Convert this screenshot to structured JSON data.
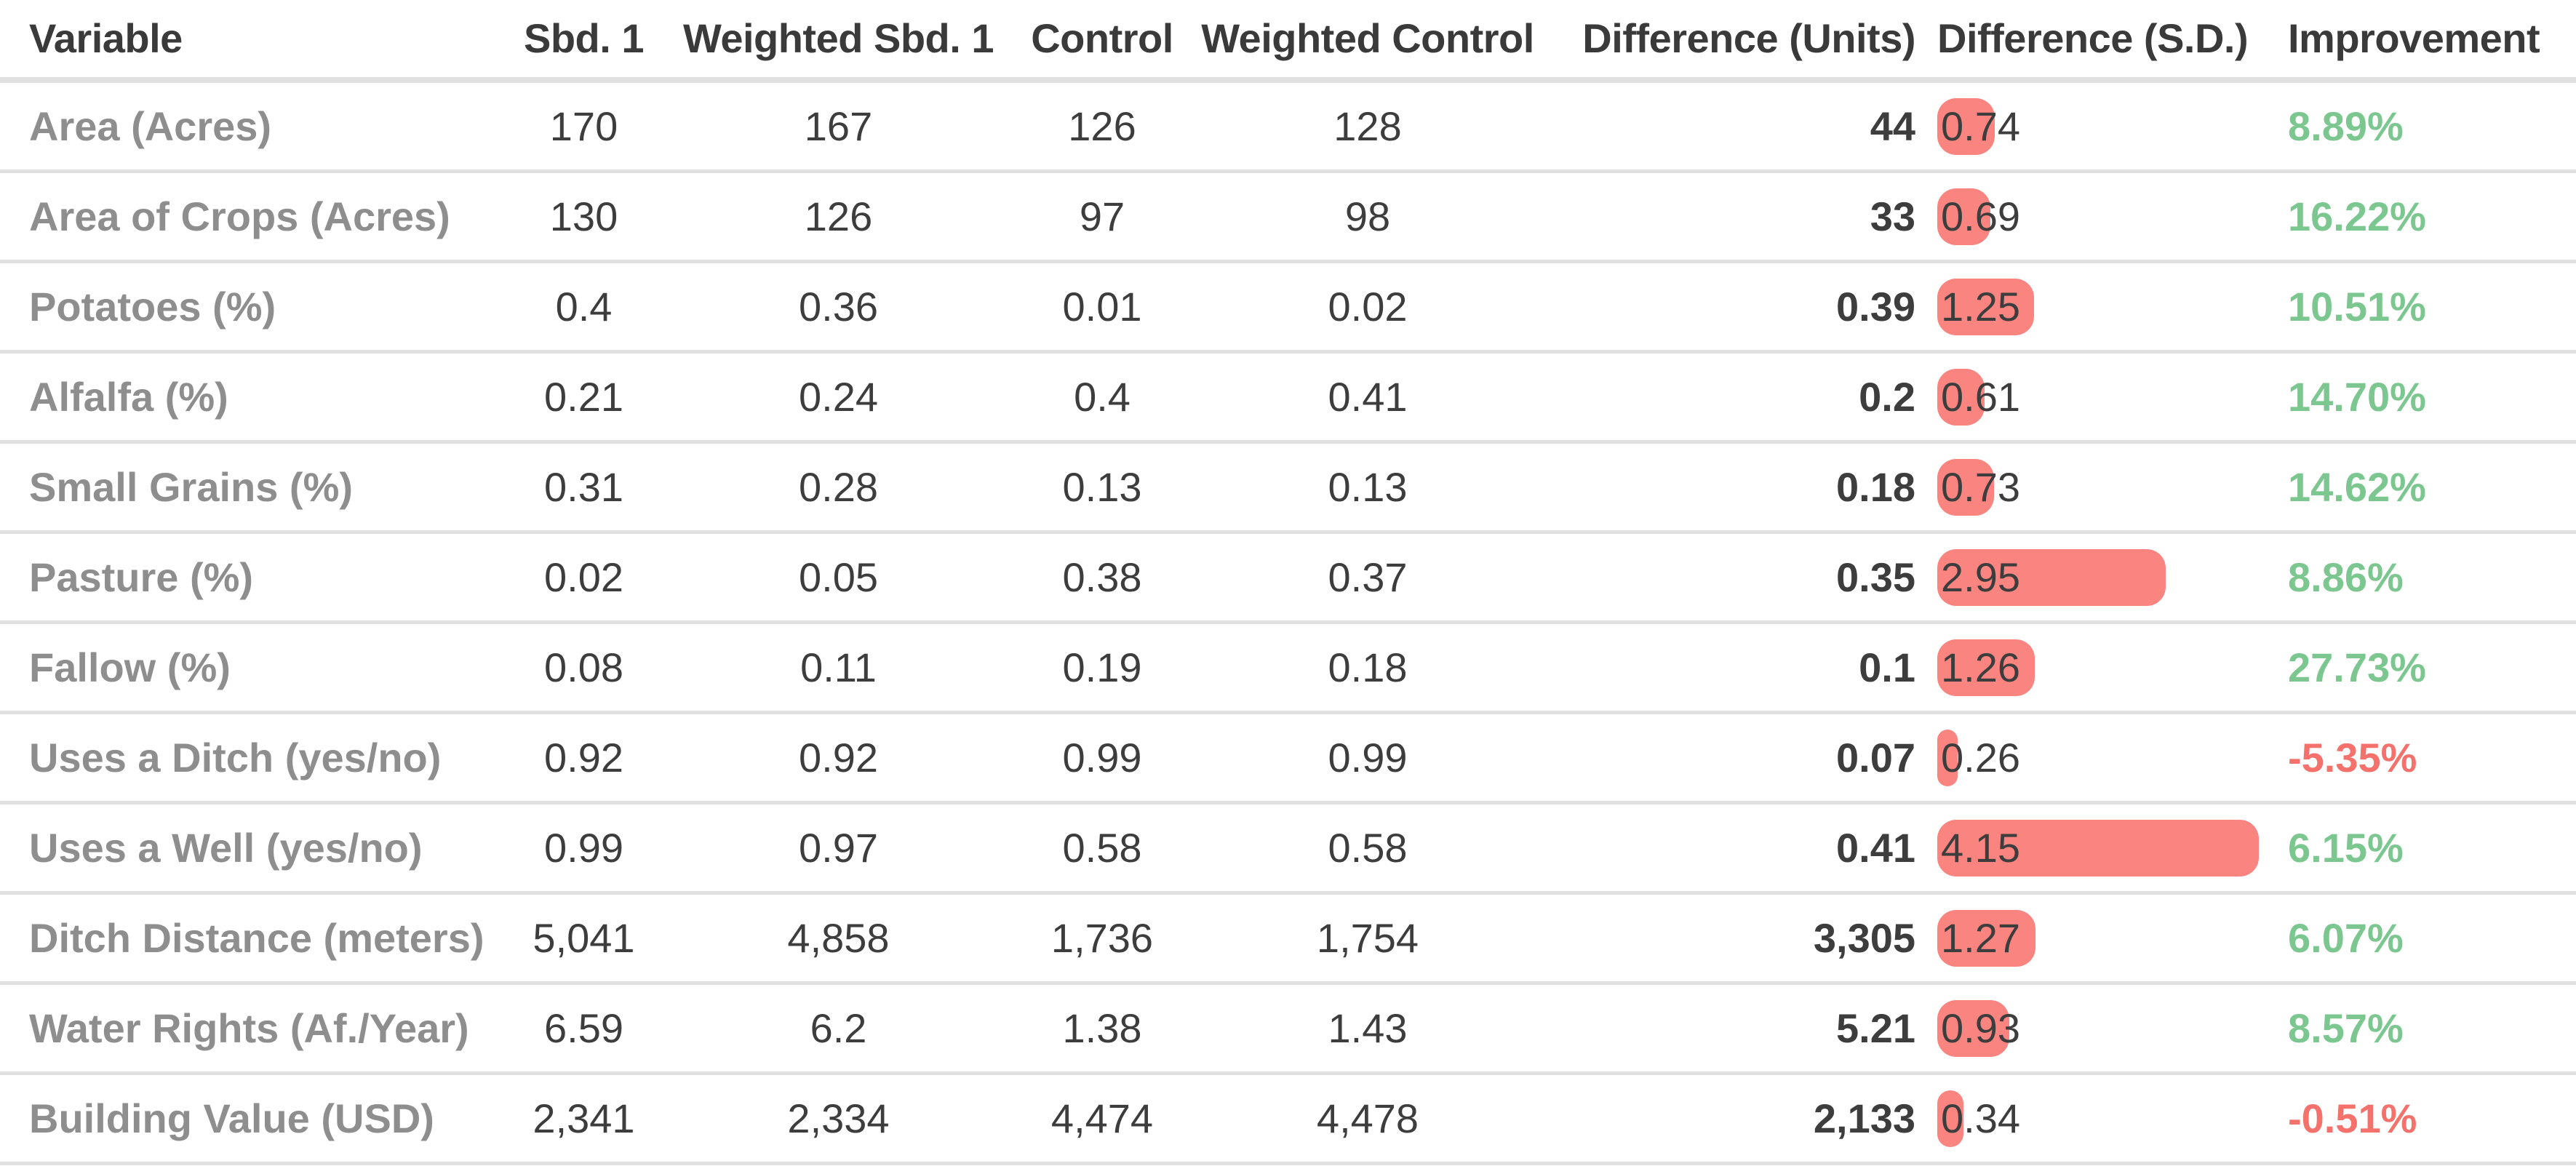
{
  "colors": {
    "bar": "#f98480",
    "positive_improvement": "#7cc790",
    "negative_improvement": "#f4716c",
    "row_label": "#8e8e8e",
    "value_text": "#3d3d3d",
    "header_text": "#3a3a3a",
    "divider": "#e0e0e0"
  },
  "chart_data": {
    "type": "table",
    "columns": [
      {
        "label": "Variable",
        "align": "left"
      },
      {
        "label": "Sbd. 1",
        "align": "center"
      },
      {
        "label": "Weighted Sbd. 1",
        "align": "center"
      },
      {
        "label": "Control",
        "align": "center"
      },
      {
        "label": "Weighted Control",
        "align": "center"
      },
      {
        "label": "Difference (Units)",
        "align": "right"
      },
      {
        "label": "Difference (S.D.)",
        "align": "left"
      },
      {
        "label": "Improvement",
        "align": "left"
      }
    ],
    "sd_bar": {
      "column": "Difference (S.D.)",
      "style": "proportional-width",
      "min": 0,
      "max_value": 4.15,
      "color": "#f98480"
    },
    "rows": [
      {
        "variable": "Area (Acres)",
        "sbd1": "170",
        "wsbd1": "167",
        "control": "126",
        "wcontrol": "128",
        "diff_units": "44",
        "diff_sd": "0.74",
        "diff_sd_value": 0.74,
        "improvement": "8.89%"
      },
      {
        "variable": "Area of Crops (Acres)",
        "sbd1": "130",
        "wsbd1": "126",
        "control": "97",
        "wcontrol": "98",
        "diff_units": "33",
        "diff_sd": "0.69",
        "diff_sd_value": 0.69,
        "improvement": "16.22%"
      },
      {
        "variable": "Potatoes (%)",
        "sbd1": "0.4",
        "wsbd1": "0.36",
        "control": "0.01",
        "wcontrol": "0.02",
        "diff_units": "0.39",
        "diff_sd": "1.25",
        "diff_sd_value": 1.25,
        "improvement": "10.51%"
      },
      {
        "variable": "Alfalfa (%)",
        "sbd1": "0.21",
        "wsbd1": "0.24",
        "control": "0.4",
        "wcontrol": "0.41",
        "diff_units": "0.2",
        "diff_sd": "0.61",
        "diff_sd_value": 0.61,
        "improvement": "14.70%"
      },
      {
        "variable": "Small Grains (%)",
        "sbd1": "0.31",
        "wsbd1": "0.28",
        "control": "0.13",
        "wcontrol": "0.13",
        "diff_units": "0.18",
        "diff_sd": "0.73",
        "diff_sd_value": 0.73,
        "improvement": "14.62%"
      },
      {
        "variable": "Pasture (%)",
        "sbd1": "0.02",
        "wsbd1": "0.05",
        "control": "0.38",
        "wcontrol": "0.37",
        "diff_units": "0.35",
        "diff_sd": "2.95",
        "diff_sd_value": 2.95,
        "improvement": "8.86%"
      },
      {
        "variable": "Fallow (%)",
        "sbd1": "0.08",
        "wsbd1": "0.11",
        "control": "0.19",
        "wcontrol": "0.18",
        "diff_units": "0.1",
        "diff_sd": "1.26",
        "diff_sd_value": 1.26,
        "improvement": "27.73%"
      },
      {
        "variable": "Uses a Ditch (yes/no)",
        "sbd1": "0.92",
        "wsbd1": "0.92",
        "control": "0.99",
        "wcontrol": "0.99",
        "diff_units": "0.07",
        "diff_sd": "0.26",
        "diff_sd_value": 0.26,
        "improvement": "-5.35%"
      },
      {
        "variable": "Uses a Well (yes/no)",
        "sbd1": "0.99",
        "wsbd1": "0.97",
        "control": "0.58",
        "wcontrol": "0.58",
        "diff_units": "0.41",
        "diff_sd": "4.15",
        "diff_sd_value": 4.15,
        "improvement": "6.15%"
      },
      {
        "variable": "Ditch Distance (meters)",
        "sbd1": "5,041",
        "wsbd1": "4,858",
        "control": "1,736",
        "wcontrol": "1,754",
        "diff_units": "3,305",
        "diff_sd": "1.27",
        "diff_sd_value": 1.27,
        "improvement": "6.07%"
      },
      {
        "variable": "Water Rights (Af./Year)",
        "sbd1": "6.59",
        "wsbd1": "6.2",
        "control": "1.38",
        "wcontrol": "1.43",
        "diff_units": "5.21",
        "diff_sd": "0.93",
        "diff_sd_value": 0.93,
        "improvement": "8.57%"
      },
      {
        "variable": "Building Value (USD)",
        "sbd1": "2,341",
        "wsbd1": "2,334",
        "control": "4,474",
        "wcontrol": "4,478",
        "diff_units": "2,133",
        "diff_sd": "0.34",
        "diff_sd_value": 0.34,
        "improvement": "-0.51%"
      }
    ]
  }
}
